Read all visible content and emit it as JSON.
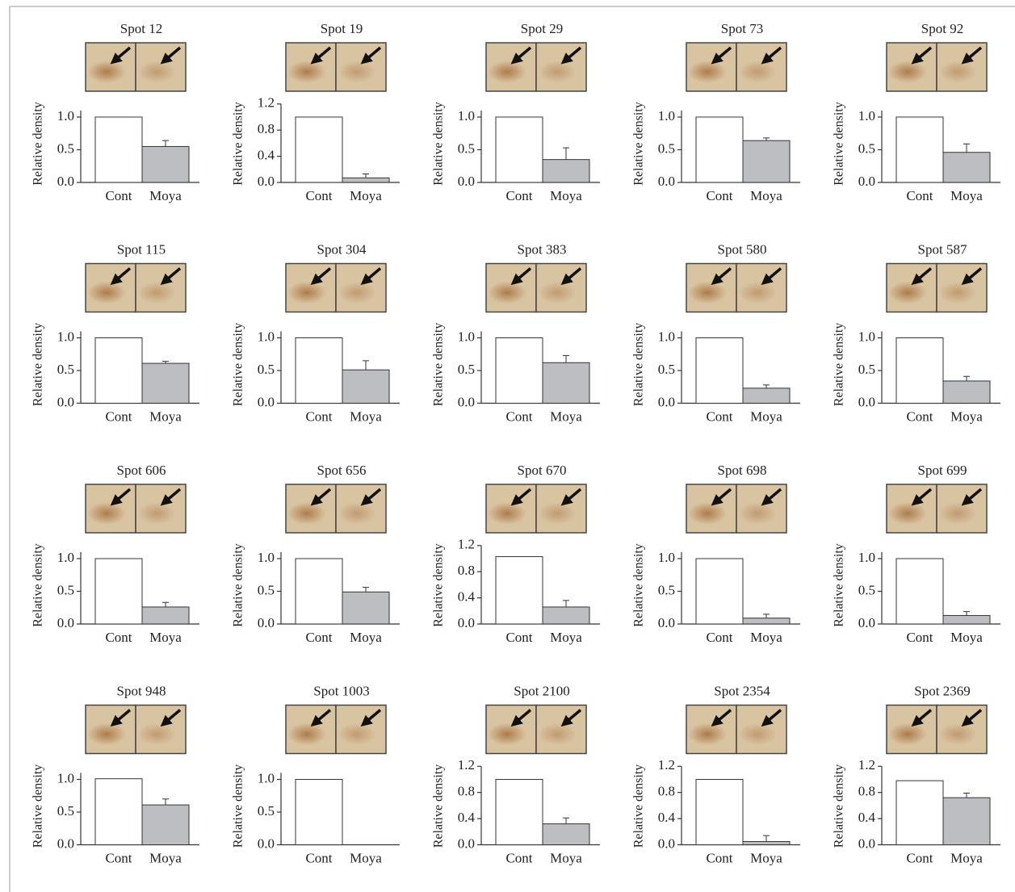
{
  "chart_data": [
    {
      "type": "bar",
      "title": "Spot 12",
      "ylabel": "Relative density",
      "categories": [
        "Cont",
        "Moya"
      ],
      "values": [
        1.0,
        0.55
      ],
      "errors": [
        null,
        0.09
      ],
      "colors": [
        "#ffffff",
        "#bcbec2"
      ],
      "ylim": [
        0,
        1.1
      ],
      "yticks": [
        {
          "value": 0,
          "label": "0.0"
        },
        0.5,
        {
          "value": 1,
          "label": "1.0"
        }
      ]
    },
    {
      "type": "bar",
      "title": "Spot 19",
      "ylabel": "Relative density",
      "categories": [
        "Cont",
        "Moya"
      ],
      "values": [
        1.0,
        0.07
      ],
      "errors": [
        null,
        0.06
      ],
      "colors": [
        "#ffffff",
        "#bcbec2"
      ],
      "ylim": [
        0,
        1.2
      ],
      "yticks": [
        {
          "value": 0,
          "label": "0.0"
        },
        0.4,
        0.8,
        1.2
      ]
    },
    {
      "type": "bar",
      "title": "Spot 29",
      "ylabel": "Relative density",
      "categories": [
        "Cont",
        "Moya"
      ],
      "values": [
        1.0,
        0.35
      ],
      "errors": [
        null,
        0.18
      ],
      "colors": [
        "#ffffff",
        "#bcbec2"
      ],
      "ylim": [
        0,
        1.1
      ],
      "yticks": [
        {
          "value": 0,
          "label": "0.0"
        },
        0.5,
        {
          "value": 1,
          "label": "1.0"
        }
      ]
    },
    {
      "type": "bar",
      "title": "Spot 73",
      "ylabel": "Relative density",
      "categories": [
        "Cont",
        "Moya"
      ],
      "values": [
        1.0,
        0.64
      ],
      "errors": [
        null,
        0.04
      ],
      "colors": [
        "#ffffff",
        "#bcbec2"
      ],
      "ylim": [
        0,
        1.1
      ],
      "yticks": [
        {
          "value": 0,
          "label": "0.0"
        },
        0.5,
        {
          "value": 1,
          "label": "1.0"
        }
      ]
    },
    {
      "type": "bar",
      "title": "Spot 92",
      "ylabel": "Relative density",
      "categories": [
        "Cont",
        "Moya"
      ],
      "values": [
        1.0,
        0.46
      ],
      "errors": [
        null,
        0.13
      ],
      "colors": [
        "#ffffff",
        "#bcbec2"
      ],
      "ylim": [
        0,
        1.1
      ],
      "yticks": [
        {
          "value": 0,
          "label": "0.0"
        },
        0.5,
        {
          "value": 1,
          "label": "1.0"
        }
      ]
    },
    {
      "type": "bar",
      "title": "Spot 115",
      "ylabel": "Relative density",
      "categories": [
        "Cont",
        "Moya"
      ],
      "values": [
        1.0,
        0.61
      ],
      "errors": [
        null,
        0.03
      ],
      "colors": [
        "#ffffff",
        "#bcbec2"
      ],
      "ylim": [
        0,
        1.1
      ],
      "yticks": [
        {
          "value": 0,
          "label": "0.0"
        },
        0.5,
        {
          "value": 1,
          "label": "1.0"
        }
      ]
    },
    {
      "type": "bar",
      "title": "Spot 304",
      "ylabel": "Relative density",
      "categories": [
        "Cont",
        "Moya"
      ],
      "values": [
        1.0,
        0.51
      ],
      "errors": [
        null,
        0.14
      ],
      "colors": [
        "#ffffff",
        "#bcbec2"
      ],
      "ylim": [
        0,
        1.1
      ],
      "yticks": [
        {
          "value": 0,
          "label": "0.0"
        },
        0.5,
        {
          "value": 1,
          "label": "1.0"
        }
      ]
    },
    {
      "type": "bar",
      "title": "Spot 383",
      "ylabel": "Relative density",
      "categories": [
        "Cont",
        "Moya"
      ],
      "values": [
        1.0,
        0.62
      ],
      "errors": [
        null,
        0.11
      ],
      "colors": [
        "#ffffff",
        "#bcbec2"
      ],
      "ylim": [
        0,
        1.1
      ],
      "yticks": [
        {
          "value": 0,
          "label": "0.0"
        },
        0.5,
        {
          "value": 1,
          "label": "1.0"
        }
      ]
    },
    {
      "type": "bar",
      "title": "Spot 580",
      "ylabel": "Relative density",
      "categories": [
        "Cont",
        "Moya"
      ],
      "values": [
        1.0,
        0.23
      ],
      "errors": [
        null,
        0.05
      ],
      "colors": [
        "#ffffff",
        "#bcbec2"
      ],
      "ylim": [
        0,
        1.1
      ],
      "yticks": [
        {
          "value": 0,
          "label": "0.0"
        },
        0.5,
        {
          "value": 1,
          "label": "1.0"
        }
      ]
    },
    {
      "type": "bar",
      "title": "Spot 587",
      "ylabel": "Relative density",
      "categories": [
        "Cont",
        "Moya"
      ],
      "values": [
        1.0,
        0.34
      ],
      "errors": [
        null,
        0.07
      ],
      "colors": [
        "#ffffff",
        "#bcbec2"
      ],
      "ylim": [
        0,
        1.1
      ],
      "yticks": [
        {
          "value": 0,
          "label": "0.0"
        },
        0.5,
        {
          "value": 1,
          "label": "1.0"
        }
      ]
    },
    {
      "type": "bar",
      "title": "Spot 606",
      "ylabel": "Relative density",
      "categories": [
        "Cont",
        "Moya"
      ],
      "values": [
        1.0,
        0.26
      ],
      "errors": [
        null,
        0.07
      ],
      "colors": [
        "#ffffff",
        "#bcbec2"
      ],
      "ylim": [
        0,
        1.1
      ],
      "yticks": [
        {
          "value": 0,
          "label": "0.0"
        },
        0.5,
        {
          "value": 1,
          "label": "1.0"
        }
      ]
    },
    {
      "type": "bar",
      "title": "Spot 656",
      "ylabel": "Relative density",
      "categories": [
        "Cont",
        "Moya"
      ],
      "values": [
        1.0,
        0.49
      ],
      "errors": [
        null,
        0.07
      ],
      "colors": [
        "#ffffff",
        "#bcbec2"
      ],
      "ylim": [
        0,
        1.1
      ],
      "yticks": [
        {
          "value": 0,
          "label": "0.0"
        },
        0.5,
        {
          "value": 1,
          "label": "1.0"
        }
      ]
    },
    {
      "type": "bar",
      "title": "Spot 670",
      "ylabel": "Relative density",
      "categories": [
        "Cont",
        "Moya"
      ],
      "values": [
        1.03,
        0.26
      ],
      "errors": [
        null,
        0.1
      ],
      "colors": [
        "#ffffff",
        "#bcbec2"
      ],
      "ylim": [
        0,
        1.2
      ],
      "yticks": [
        {
          "value": 0,
          "label": "0.0"
        },
        0.4,
        0.8,
        1.2
      ]
    },
    {
      "type": "bar",
      "title": "Spot 698",
      "ylabel": "Relative density",
      "categories": [
        "Cont",
        "Moya"
      ],
      "values": [
        1.0,
        0.09
      ],
      "errors": [
        null,
        0.06
      ],
      "colors": [
        "#ffffff",
        "#bcbec2"
      ],
      "ylim": [
        0,
        1.1
      ],
      "yticks": [
        {
          "value": 0,
          "label": "0.0"
        },
        0.5,
        {
          "value": 1,
          "label": "1.0"
        }
      ]
    },
    {
      "type": "bar",
      "title": "Spot 699",
      "ylabel": "Relative density",
      "categories": [
        "Cont",
        "Moya"
      ],
      "values": [
        1.0,
        0.13
      ],
      "errors": [
        null,
        0.06
      ],
      "colors": [
        "#ffffff",
        "#bcbec2"
      ],
      "ylim": [
        0,
        1.1
      ],
      "yticks": [
        {
          "value": 0,
          "label": "0.0"
        },
        0.5,
        {
          "value": 1,
          "label": "1.0"
        }
      ]
    },
    {
      "type": "bar",
      "title": "Spot 948",
      "ylabel": "Relative density",
      "categories": [
        "Cont",
        "Moya"
      ],
      "values": [
        1.01,
        0.61
      ],
      "errors": [
        null,
        0.09
      ],
      "colors": [
        "#ffffff",
        "#bcbec2"
      ],
      "ylim": [
        0,
        1.1
      ],
      "yticks": [
        {
          "value": 0,
          "label": "0.0"
        },
        0.5,
        {
          "value": 1,
          "label": "1.0"
        }
      ]
    },
    {
      "type": "bar",
      "title": "Spot 1003",
      "ylabel": "Relative density",
      "categories": [
        "Cont",
        "Moya"
      ],
      "values": [
        1.0,
        0
      ],
      "errors": [
        null,
        null
      ],
      "colors": [
        "#ffffff",
        "#bcbec2"
      ],
      "ylim": [
        0,
        1.1
      ],
      "yticks": [
        {
          "value": 0,
          "label": "0.0"
        },
        0.5,
        {
          "value": 1,
          "label": "1.0"
        }
      ]
    },
    {
      "type": "bar",
      "title": "Spot 2100",
      "ylabel": "Relative density",
      "categories": [
        "Cont",
        "Moya"
      ],
      "values": [
        1.0,
        0.32
      ],
      "errors": [
        null,
        0.09
      ],
      "colors": [
        "#ffffff",
        "#bcbec2"
      ],
      "ylim": [
        0,
        1.2
      ],
      "yticks": [
        {
          "value": 0,
          "label": "0.0"
        },
        0.4,
        0.8,
        1.2
      ]
    },
    {
      "type": "bar",
      "title": "Spot 2354",
      "ylabel": "Relative density",
      "categories": [
        "Cont",
        "Moya"
      ],
      "values": [
        1.0,
        0.05
      ],
      "errors": [
        null,
        0.09
      ],
      "colors": [
        "#ffffff",
        "#bcbec2"
      ],
      "ylim": [
        0,
        1.2
      ],
      "yticks": [
        {
          "value": 0,
          "label": "0.0"
        },
        0.4,
        0.8,
        1.2
      ]
    },
    {
      "type": "bar",
      "title": "Spot 2369",
      "ylabel": "Relative density",
      "categories": [
        "Cont",
        "Moya"
      ],
      "values": [
        0.98,
        0.72
      ],
      "errors": [
        null,
        0.07
      ],
      "colors": [
        "#ffffff",
        "#bcbec2"
      ],
      "ylim": [
        0,
        1.2
      ],
      "yticks": [
        {
          "value": 0,
          "label": "0.0"
        },
        0.4,
        0.8,
        1.2
      ]
    }
  ]
}
